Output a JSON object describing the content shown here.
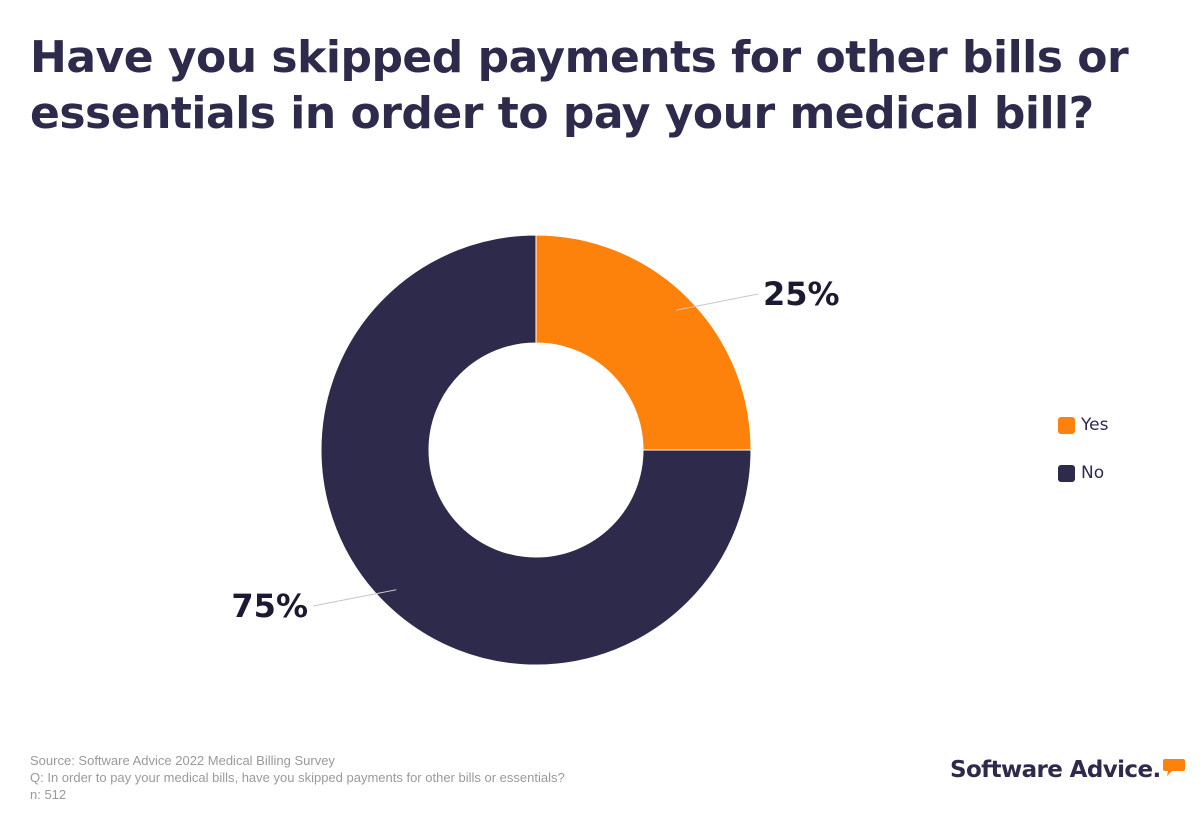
{
  "title": {
    "line1": "Have you skipped payments for other bills or",
    "line2": "essentials in order to pay your medical bill?"
  },
  "chart_data": {
    "type": "pie",
    "donut": true,
    "categories": [
      "Yes",
      "No"
    ],
    "values": [
      25,
      75
    ],
    "value_labels": [
      "25%",
      "75%"
    ],
    "colors": [
      "#fd820c",
      "#2d2a4c"
    ],
    "legend_position": "right"
  },
  "legend": {
    "items": [
      {
        "label": "Yes",
        "color": "#fd820c"
      },
      {
        "label": "No",
        "color": "#2d2a4c"
      }
    ]
  },
  "footer": {
    "source": "Source: Software Advice 2022 Medical Billing Survey",
    "question": "Q: In order to pay your medical bills, have you skipped payments for other bills or essentials?",
    "sample": "n: 512"
  },
  "logo": {
    "text": "Software Advice.",
    "icon": "speech-bubble-icon",
    "accent": "#fd820c"
  }
}
